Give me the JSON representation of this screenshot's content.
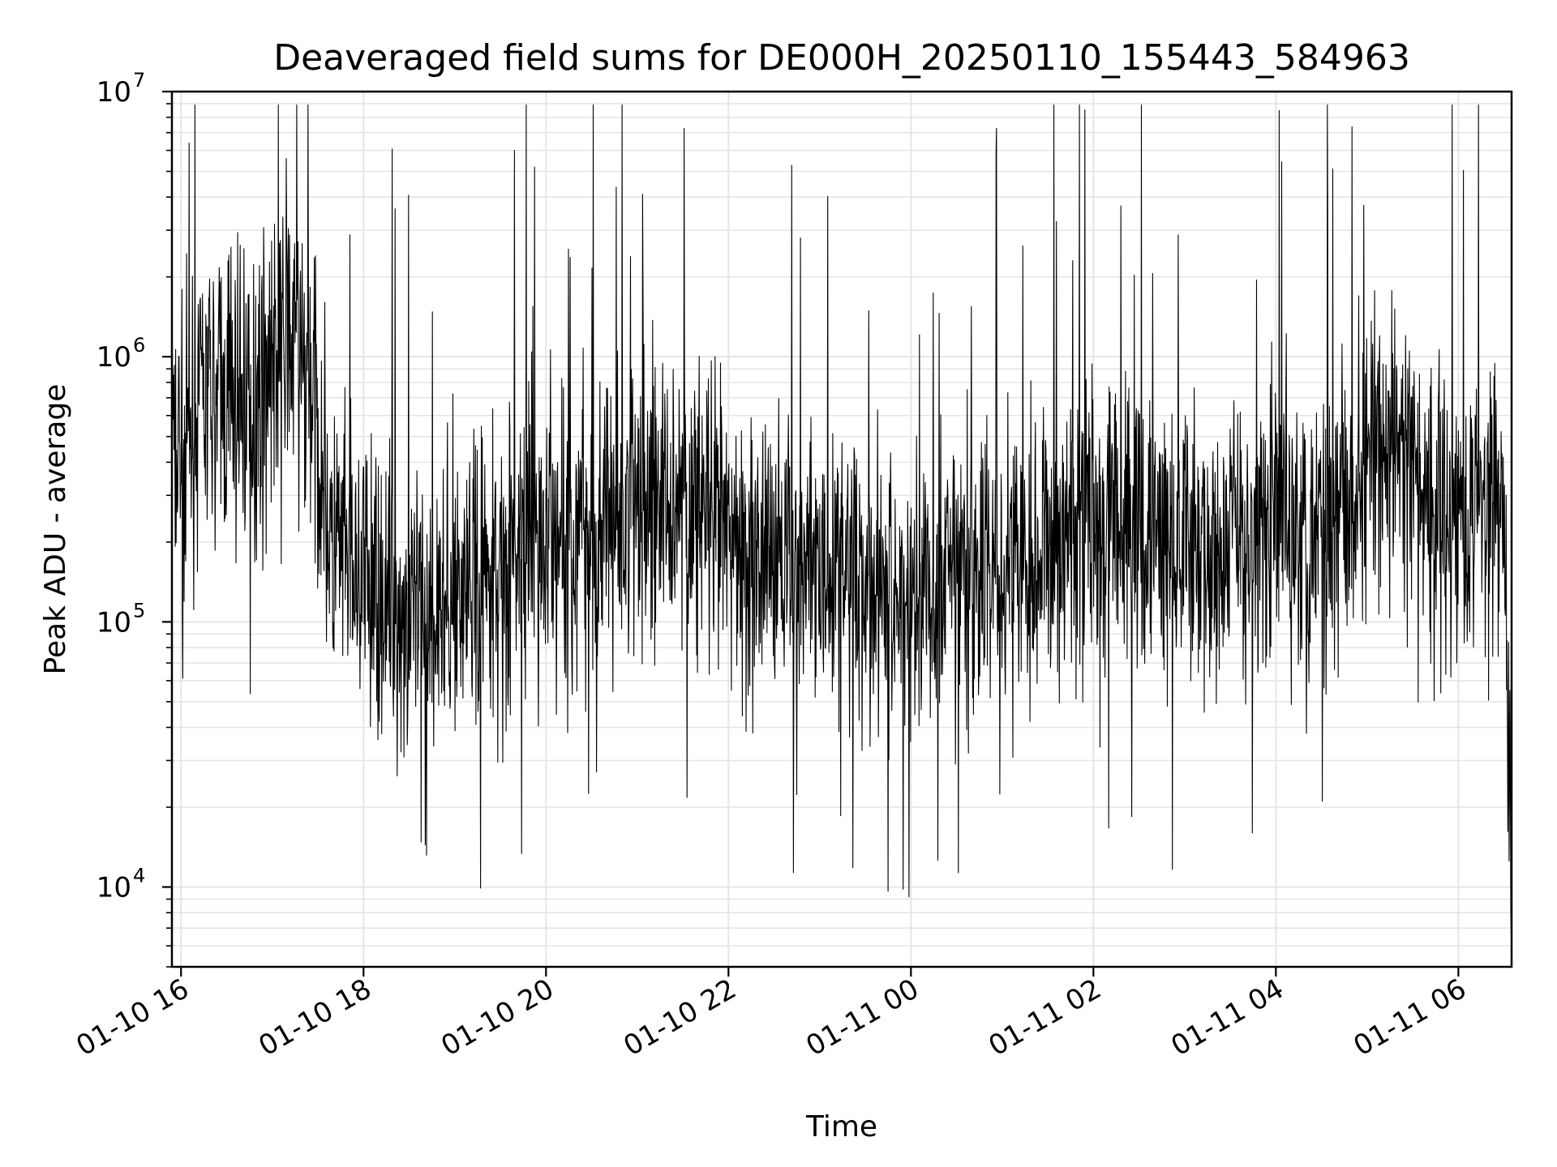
{
  "chart_data": {
    "type": "line",
    "title": "Deaveraged field sums for DE000H_20250110_155443_584963",
    "xlabel": "Time",
    "ylabel": "Peak ADU - average",
    "yscale": "log",
    "ylim": [
      5000,
      10000000
    ],
    "xlim": [
      "2025-01-10 15:54",
      "2025-01-11 06:35"
    ],
    "grid": true,
    "line_color": "#000000",
    "grid_color": "#e5e5e5",
    "x_ticks": [
      {
        "label": "01-10 16",
        "t": "2025-01-10 16:00"
      },
      {
        "label": "01-10 18",
        "t": "2025-01-10 18:00"
      },
      {
        "label": "01-10 20",
        "t": "2025-01-10 20:00"
      },
      {
        "label": "01-10 22",
        "t": "2025-01-10 22:00"
      },
      {
        "label": "01-11 00",
        "t": "2025-01-11 00:00"
      },
      {
        "label": "01-11 02",
        "t": "2025-01-11 02:00"
      },
      {
        "label": "01-11 04",
        "t": "2025-01-11 04:00"
      },
      {
        "label": "01-11 06",
        "t": "2025-01-11 06:00"
      }
    ],
    "y_ticks": [
      {
        "base": "10",
        "exp": "4",
        "value": 10000
      },
      {
        "base": "10",
        "exp": "5",
        "value": 100000
      },
      {
        "base": "10",
        "exp": "6",
        "value": 1000000
      },
      {
        "base": "10",
        "exp": "7",
        "value": 10000000
      }
    ],
    "series": [
      {
        "x": [
          "2025-01-10 15:54",
          "2025-01-10 16:10",
          "2025-01-10 16:30",
          "2025-01-10 16:50",
          "2025-01-10 17:00",
          "2025-01-10 17:15",
          "2025-01-10 17:25",
          "2025-01-10 17:40",
          "2025-01-10 18:00",
          "2025-01-10 18:20",
          "2025-01-10 18:40",
          "2025-01-10 19:00",
          "2025-01-10 19:20",
          "2025-01-10 19:40",
          "2025-01-10 20:00",
          "2025-01-10 20:30",
          "2025-01-10 21:00",
          "2025-01-10 21:30",
          "2025-01-10 22:00",
          "2025-01-10 22:30",
          "2025-01-10 23:00",
          "2025-01-10 23:30",
          "2025-01-11 00:00",
          "2025-01-11 00:30",
          "2025-01-11 01:00",
          "2025-01-11 01:30",
          "2025-01-11 02:00",
          "2025-01-11 02:30",
          "2025-01-11 03:00",
          "2025-01-11 03:30",
          "2025-01-11 04:00",
          "2025-01-11 04:30",
          "2025-01-11 05:00",
          "2025-01-11 05:20",
          "2025-01-11 05:40",
          "2025-01-11 06:00",
          "2025-01-11 06:20",
          "2025-01-11 06:30",
          "2025-01-11 06:35"
        ],
        "y": [
          400000,
          600000,
          700000,
          700000,
          1000000,
          1200000,
          800000,
          180000,
          140000,
          110000,
          100000,
          130000,
          150000,
          180000,
          200000,
          230000,
          270000,
          300000,
          200000,
          180000,
          170000,
          150000,
          120000,
          140000,
          170000,
          190000,
          260000,
          220000,
          170000,
          200000,
          250000,
          260000,
          380000,
          480000,
          280000,
          270000,
          290000,
          270000,
          8000
        ]
      }
    ]
  }
}
